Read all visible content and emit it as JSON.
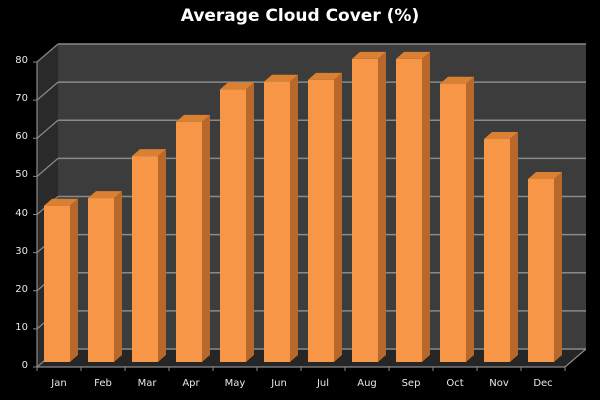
{
  "chart_data": {
    "type": "bar",
    "title": "Average Cloud Cover (%)",
    "xlabel": "",
    "ylabel": "",
    "categories": [
      "Jan",
      "Feb",
      "Mar",
      "Apr",
      "May",
      "Jun",
      "Jul",
      "Aug",
      "Sep",
      "Oct",
      "Nov",
      "Dec"
    ],
    "values": [
      41,
      43,
      54,
      63,
      71.5,
      73.5,
      74,
      79.5,
      79.5,
      73,
      58.5,
      48
    ],
    "ylim": [
      0,
      80
    ],
    "yticks": [
      0,
      10,
      20,
      30,
      40,
      50,
      60,
      70,
      80
    ],
    "grid": true,
    "legend": null,
    "style": "3d-column"
  },
  "colors": {
    "background": "#000000",
    "wall": "#3c3c3c",
    "side_wall": "#2a2a2a",
    "floor": "#262626",
    "gridline": "#8a8a8a",
    "bar_front": "#f79646",
    "bar_side": "#b8682a",
    "bar_top": "#d98033",
    "text": "#e8e8e8"
  }
}
